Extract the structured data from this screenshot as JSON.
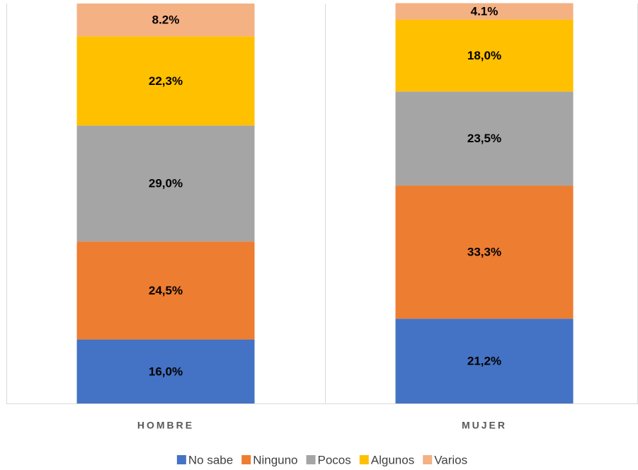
{
  "chart_data": {
    "type": "stacked_bar",
    "categories": [
      "HOMBRE",
      "MUJER"
    ],
    "ylim": [
      0,
      100
    ],
    "legend": "bottom",
    "series": [
      {
        "name": "No sabe",
        "color": "#4472c4",
        "values": [
          16.0,
          21.2
        ],
        "value_labels": [
          "16,0%",
          "21,2%"
        ]
      },
      {
        "name": "Ninguno",
        "color": "#ed7d31",
        "values": [
          24.5,
          33.3
        ],
        "value_labels": [
          "24,5%",
          "33,3%"
        ]
      },
      {
        "name": "Pocos",
        "color": "#a5a5a5",
        "values": [
          29.0,
          23.5
        ],
        "value_labels": [
          "29,0%",
          "23,5%"
        ]
      },
      {
        "name": "Algunos",
        "color": "#ffc000",
        "values": [
          22.3,
          18.0
        ],
        "value_labels": [
          "22,3%",
          "18,0%"
        ]
      },
      {
        "name": "Varios",
        "color": "#f4b183",
        "values": [
          8.2,
          4.1
        ],
        "value_labels": [
          "8.2%",
          "4.1%"
        ]
      }
    ]
  }
}
